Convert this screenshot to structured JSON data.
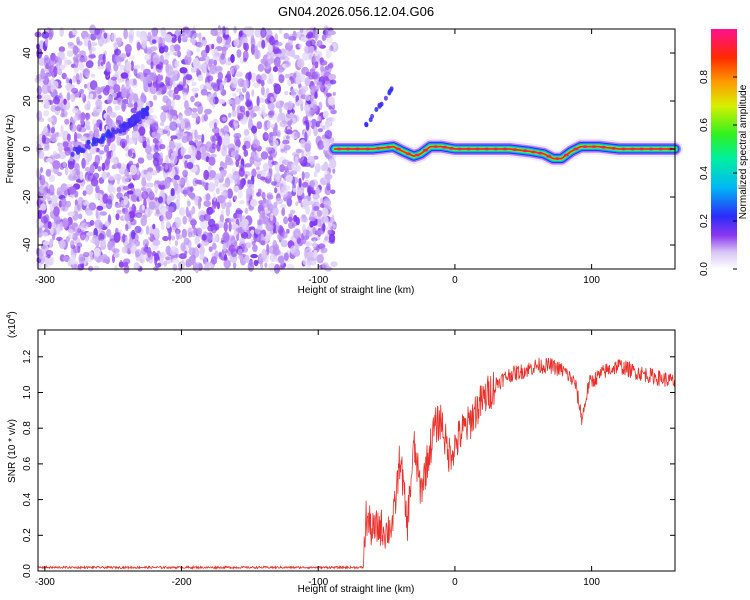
{
  "title": "GN04.2026.056.12.04.G06",
  "colors": {
    "snr_line": "#e8312a",
    "spectrogram_low": "#7a22e0",
    "background": "#ffffff",
    "axis": "#000000"
  },
  "chart_data": [
    {
      "type": "heatmap",
      "xlabel": "Height of straight line (km)",
      "ylabel": "Frequency (Hz)",
      "xlim": [
        -305,
        161
      ],
      "ylim": [
        -50,
        50
      ],
      "xticks": [
        -300,
        -200,
        -100,
        0,
        100
      ],
      "yticks": [
        -40,
        -20,
        0,
        20,
        40
      ],
      "colorbar": {
        "label": "Normalized spectral amplitude",
        "range": [
          0.0,
          1.0
        ],
        "ticks": [
          0.0,
          0.2,
          0.4,
          0.6,
          0.8
        ],
        "tick_labels": [
          "0.0",
          "0.2",
          "0.4",
          "0.6",
          "0.8"
        ],
        "colormap": "rainbow (white-purple-blue-cyan-green-yellow-red-magenta)"
      },
      "features": {
        "noise_region_x": [
          -305,
          -88
        ],
        "noise_amplitude_range": [
          0.0,
          0.15
        ],
        "faint_line": [
          {
            "x": -280,
            "y": -2
          },
          {
            "x": -240,
            "y": 10
          },
          {
            "x": -225,
            "y": 16
          }
        ],
        "faint_line_upper": [
          {
            "x": -65,
            "y": 10
          },
          {
            "x": -45,
            "y": 26
          }
        ],
        "signal_track": [
          {
            "x": -88,
            "y": 0
          },
          {
            "x": -75,
            "y": 0
          },
          {
            "x": -60,
            "y": 0
          },
          {
            "x": -45,
            "y": 1
          },
          {
            "x": -38,
            "y": -1
          },
          {
            "x": -30,
            "y": -3
          },
          {
            "x": -25,
            "y": -2
          },
          {
            "x": -18,
            "y": 1
          },
          {
            "x": -10,
            "y": 1
          },
          {
            "x": 0,
            "y": 0
          },
          {
            "x": 20,
            "y": 0
          },
          {
            "x": 40,
            "y": 0
          },
          {
            "x": 55,
            "y": -1
          },
          {
            "x": 65,
            "y": -2
          },
          {
            "x": 72,
            "y": -4
          },
          {
            "x": 78,
            "y": -4
          },
          {
            "x": 85,
            "y": -1
          },
          {
            "x": 92,
            "y": 1
          },
          {
            "x": 105,
            "y": 1
          },
          {
            "x": 120,
            "y": 0
          },
          {
            "x": 140,
            "y": 0
          },
          {
            "x": 161,
            "y": 0
          }
        ]
      }
    },
    {
      "type": "line",
      "xlabel": "Height of straight line (km)",
      "ylabel": "SNR (10 * v/v)",
      "y_multiplier": "(x10",
      "y_multiplier_exp": "4",
      "xlim": [
        -305,
        161
      ],
      "ylim": [
        0,
        1.35
      ],
      "xticks": [
        -300,
        -200,
        -100,
        0,
        100
      ],
      "yticks": [
        0.0,
        0.2,
        0.4,
        0.6,
        0.8,
        1.0,
        1.2
      ],
      "ytick_labels": [
        "0.0",
        "0.2",
        "0.4",
        "0.6",
        "0.8",
        "1.0",
        "1.2"
      ],
      "series": [
        {
          "values_envelope": [
            {
              "x": -305,
              "y": 0.02
            },
            {
              "x": -150,
              "y": 0.02
            },
            {
              "x": -67,
              "y": 0.02
            },
            {
              "x": -65,
              "y": 0.3
            },
            {
              "x": -60,
              "y": 0.22
            },
            {
              "x": -55,
              "y": 0.25
            },
            {
              "x": -50,
              "y": 0.22
            },
            {
              "x": -45,
              "y": 0.28
            },
            {
              "x": -40,
              "y": 0.65
            },
            {
              "x": -35,
              "y": 0.25
            },
            {
              "x": -30,
              "y": 0.7
            },
            {
              "x": -25,
              "y": 0.45
            },
            {
              "x": -20,
              "y": 0.62
            },
            {
              "x": -15,
              "y": 0.8
            },
            {
              "x": -10,
              "y": 0.85
            },
            {
              "x": -5,
              "y": 0.65
            },
            {
              "x": 0,
              "y": 0.7
            },
            {
              "x": 5,
              "y": 0.78
            },
            {
              "x": 10,
              "y": 0.82
            },
            {
              "x": 15,
              "y": 0.9
            },
            {
              "x": 20,
              "y": 0.95
            },
            {
              "x": 30,
              "y": 1.05
            },
            {
              "x": 40,
              "y": 1.1
            },
            {
              "x": 50,
              "y": 1.12
            },
            {
              "x": 60,
              "y": 1.15
            },
            {
              "x": 70,
              "y": 1.15
            },
            {
              "x": 80,
              "y": 1.12
            },
            {
              "x": 88,
              "y": 1.05
            },
            {
              "x": 93,
              "y": 0.85
            },
            {
              "x": 98,
              "y": 1.05
            },
            {
              "x": 110,
              "y": 1.12
            },
            {
              "x": 120,
              "y": 1.15
            },
            {
              "x": 130,
              "y": 1.12
            },
            {
              "x": 140,
              "y": 1.1
            },
            {
              "x": 150,
              "y": 1.08
            },
            {
              "x": 161,
              "y": 1.06
            }
          ]
        }
      ]
    }
  ]
}
